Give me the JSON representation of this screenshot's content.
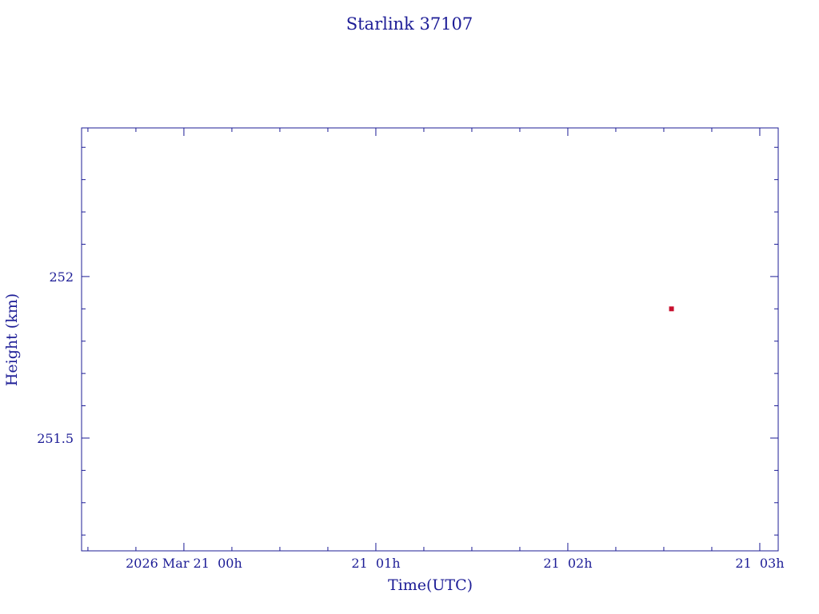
{
  "chart_data": {
    "type": "scatter",
    "title": "Starlink 37107",
    "x_label": "Time(UTC)",
    "y_label": "Height (km)",
    "x": [
      2.54
    ],
    "y": [
      251.9
    ],
    "color": "#c8102e",
    "xlim": [
      -0.533,
      3.096
    ],
    "ylim": [
      251.151,
      252.46
    ],
    "xticks": [
      {
        "value": 0,
        "label": "2026 Mar 21  00h"
      },
      {
        "value": 1,
        "label": "21  01h"
      },
      {
        "value": 2,
        "label": "21  02h"
      },
      {
        "value": 3,
        "label": "21  03h"
      }
    ],
    "yticks": [
      {
        "value": 251.5,
        "label": "251.5"
      },
      252
    ]
  }
}
